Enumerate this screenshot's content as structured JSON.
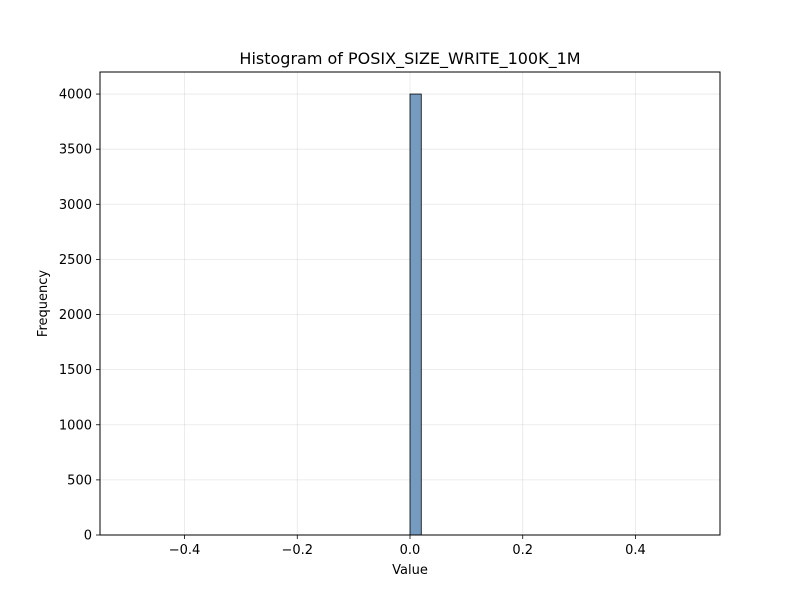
{
  "chart_data": {
    "type": "bar",
    "title": "Histogram of POSIX_SIZE_WRITE_100K_1M",
    "xlabel": "Value",
    "ylabel": "Frequency",
    "xlim": [
      -0.55,
      0.55
    ],
    "ylim": [
      0,
      4200
    ],
    "grid": true,
    "x_ticks": [
      -0.4,
      -0.2,
      0.0,
      0.2,
      0.4
    ],
    "x_tick_labels": [
      "−0.4",
      "−0.2",
      "0.0",
      "0.2",
      "0.4"
    ],
    "y_ticks": [
      0,
      500,
      1000,
      1500,
      2000,
      2500,
      3000,
      3500,
      4000
    ],
    "y_tick_labels": [
      "0",
      "500",
      "1000",
      "1500",
      "2000",
      "2500",
      "3000",
      "3500",
      "4000"
    ],
    "bins": [
      {
        "x_start": 0.0,
        "x_end": 0.02,
        "count": 4000
      }
    ],
    "bar_color": "#6e97bd",
    "edge_color": "#000000"
  }
}
